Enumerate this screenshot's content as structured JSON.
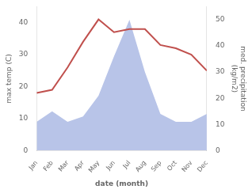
{
  "chart_data": {
    "type": "line",
    "categories": [
      "Jan",
      "Feb",
      "Mar",
      "Apr",
      "May",
      "Jun",
      "Jul",
      "Aug",
      "Sep",
      "Oct",
      "Nov",
      "Dec"
    ],
    "series": [
      {
        "type": "area",
        "color": "#b8c4e8",
        "axis": "y2",
        "values": [
          11,
          15,
          11,
          13,
          21,
          36,
          50,
          30,
          14,
          11,
          11,
          14
        ]
      },
      {
        "type": "line",
        "color": "#c0504d",
        "values": [
          18,
          19,
          26,
          34,
          41,
          37,
          38,
          38,
          33,
          32,
          30,
          25
        ]
      }
    ],
    "xlabel": "date (month)",
    "ylabel": "max temp (C)",
    "y2label": "med. precipitation\n(kg/m2)",
    "ylim": [
      0,
      45
    ],
    "yticks": [
      0,
      10,
      20,
      30,
      40
    ],
    "y2lim": [
      0,
      55
    ],
    "y2ticks": [
      0,
      10,
      20,
      30,
      40,
      50
    ],
    "grid": false
  }
}
